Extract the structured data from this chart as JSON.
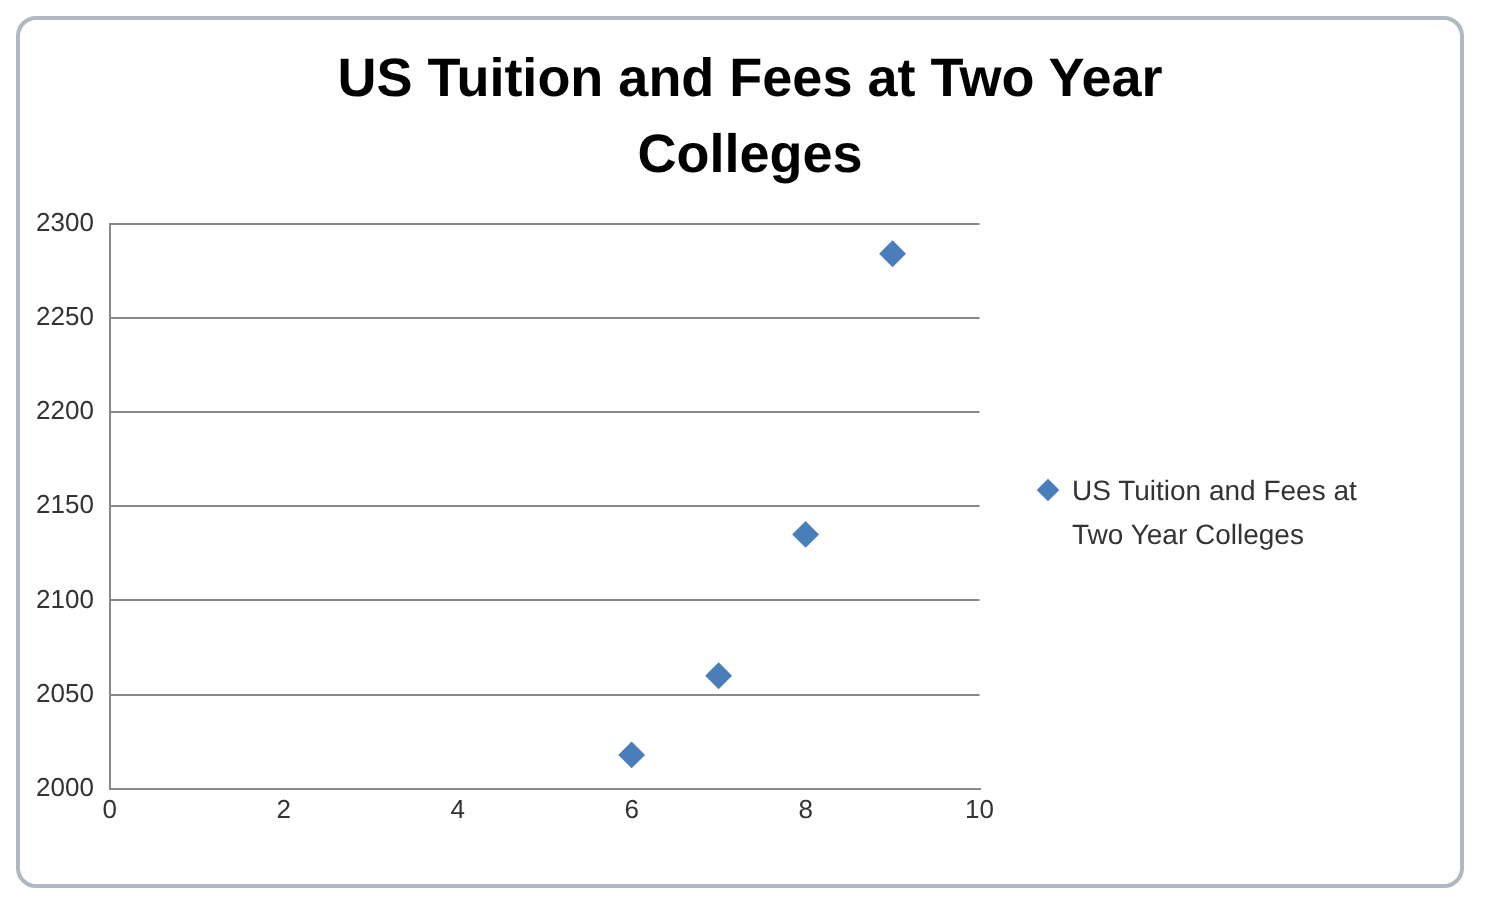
{
  "chart_data": {
    "type": "scatter",
    "title": "US Tuition and Fees at Two Year Colleges",
    "x": [
      6,
      7,
      8,
      9
    ],
    "series": [
      {
        "name": "US Tuition and Fees at Two Year Colleges",
        "color": "#4a7ebb",
        "values": [
          2018,
          2060,
          2135,
          2284
        ]
      }
    ],
    "xlim": [
      0,
      10
    ],
    "xticks": [
      0,
      2,
      4,
      6,
      8,
      10
    ],
    "ylim": [
      2000,
      2300
    ],
    "yticks": [
      2000,
      2050,
      2100,
      2150,
      2200,
      2250,
      2300
    ],
    "grid": "y",
    "legend": "right",
    "marker": "diamond"
  }
}
